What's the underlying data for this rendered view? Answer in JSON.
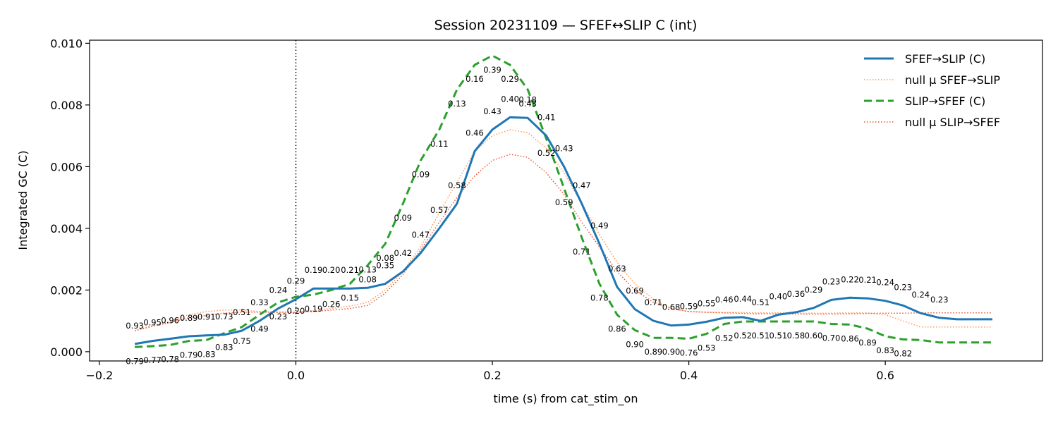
{
  "chart_data": {
    "type": "line",
    "title": "Session 20231109 — SFEF↔SLIP C (int)",
    "xlabel": "time (s) from cat_stim_on",
    "ylabel": "Integrated GC (C)",
    "xlim": [
      -0.21,
      0.76
    ],
    "ylim": [
      -0.0003,
      0.0101
    ],
    "x_ticks": [
      -0.2,
      0.0,
      0.2,
      0.4,
      0.6
    ],
    "x_tick_labels": [
      "−0.2",
      "0.0",
      "0.2",
      "0.4",
      "0.6"
    ],
    "y_ticks": [
      0.0,
      0.002,
      0.004,
      0.006,
      0.008,
      0.01
    ],
    "y_tick_labels": [
      "0.000",
      "0.002",
      "0.004",
      "0.006",
      "0.008",
      "0.010"
    ],
    "vline_x": 0.0,
    "legend_position": "top-right",
    "x": [
      -0.164,
      -0.146,
      -0.128,
      -0.109,
      -0.091,
      -0.073,
      -0.055,
      -0.037,
      -0.018,
      0.0,
      0.018,
      0.036,
      0.055,
      0.073,
      0.091,
      0.109,
      0.127,
      0.146,
      0.164,
      0.182,
      0.2,
      0.218,
      0.236,
      0.255,
      0.273,
      0.291,
      0.309,
      0.327,
      0.345,
      0.364,
      0.382,
      0.4,
      0.418,
      0.436,
      0.455,
      0.473,
      0.491,
      0.509,
      0.527,
      0.545,
      0.564,
      0.582,
      0.6,
      0.618,
      0.636,
      0.655,
      0.673,
      0.691,
      0.709
    ],
    "series": [
      {
        "name": "SFEF→SLIP (C)",
        "color": "#1f77b4",
        "style": "solid",
        "values": [
          0.00025,
          0.00035,
          0.00042,
          0.0005,
          0.00053,
          0.00055,
          0.00068,
          0.001,
          0.0014,
          0.0017,
          0.00205,
          0.00205,
          0.00205,
          0.00207,
          0.0022,
          0.0026,
          0.0032,
          0.004,
          0.0048,
          0.0065,
          0.0072,
          0.0076,
          0.00758,
          0.007,
          0.006,
          0.0048,
          0.0035,
          0.0021,
          0.00138,
          0.001,
          0.00085,
          0.00088,
          0.00097,
          0.0011,
          0.00112,
          0.001,
          0.0012,
          0.00128,
          0.00142,
          0.00168,
          0.00175,
          0.00173,
          0.00165,
          0.0015,
          0.00125,
          0.0011,
          0.00105,
          0.00105,
          0.00105
        ],
        "pvalues": [
          "0.93",
          "0.95",
          "0.96",
          "0.89",
          "0.91",
          "0.73",
          "0.51",
          "0.33",
          "0.24",
          "0.29",
          "0.19",
          "0.20",
          "0.21",
          "0.13",
          "0.35",
          "0.42",
          "0.47",
          "0.57",
          "0.58",
          "0.46",
          "0.43",
          "0.40",
          "0.18",
          "0.41",
          "0.43",
          "0.47",
          "0.49",
          "0.63",
          "0.69",
          "0.71",
          "0.68",
          "0.59",
          "0.55",
          "0.46",
          "0.44",
          "0.51",
          "0.40",
          "0.36",
          "0.29",
          "0.23",
          "0.22",
          "0.21",
          "0.24",
          "0.23",
          "0.24",
          "0.23",
          "",
          "",
          ""
        ]
      },
      {
        "name": "null μ SFEF→SLIP",
        "color": "#ff9955",
        "style": "dotted",
        "values": [
          0.00068,
          0.00085,
          0.001,
          0.0012,
          0.0013,
          0.00135,
          0.00135,
          0.0013,
          0.00128,
          0.00128,
          0.00133,
          0.0014,
          0.00148,
          0.0016,
          0.002,
          0.0026,
          0.0034,
          0.0045,
          0.0055,
          0.0065,
          0.007,
          0.0072,
          0.0071,
          0.0066,
          0.0058,
          0.0048,
          0.0038,
          0.0029,
          0.0022,
          0.0017,
          0.0014,
          0.0013,
          0.00128,
          0.00128,
          0.00127,
          0.00126,
          0.00126,
          0.00125,
          0.00125,
          0.00125,
          0.00126,
          0.00126,
          0.0012,
          0.001,
          0.0008,
          0.0008,
          0.0008,
          0.0008,
          0.0008
        ],
        "pvalues": []
      },
      {
        "name": "SLIP→SFEF (C)",
        "color": "#2ca02c",
        "style": "dashed",
        "values": [
          0.00015,
          0.00018,
          0.00022,
          0.00035,
          0.00038,
          0.0006,
          0.0008,
          0.0012,
          0.0016,
          0.00178,
          0.00185,
          0.002,
          0.0022,
          0.0028,
          0.0035,
          0.0048,
          0.0062,
          0.0072,
          0.0085,
          0.0093,
          0.0096,
          0.0093,
          0.0085,
          0.0069,
          0.0053,
          0.0037,
          0.0022,
          0.0012,
          0.0007,
          0.00045,
          0.00045,
          0.00042,
          0.00058,
          0.0009,
          0.00098,
          0.00098,
          0.00098,
          0.00098,
          0.00098,
          0.0009,
          0.00088,
          0.00075,
          0.0005,
          0.0004,
          0.00038,
          0.0003,
          0.0003,
          0.0003,
          0.0003
        ],
        "pvalues": [
          "0.79",
          "0.77",
          "0.78",
          "0.79",
          "0.83",
          "0.83",
          "0.75",
          "0.49",
          "0.23",
          "0.20",
          "0.19",
          "0.26",
          "0.15",
          "0.08",
          "0.08",
          "0.09",
          "0.09",
          "0.11",
          "0.13",
          "0.16",
          "0.39",
          "0.29",
          "0.43",
          "0.52",
          "0.59",
          "0.71",
          "0.78",
          "0.86",
          "0.90",
          "0.89",
          "0.90",
          "0.76",
          "0.53",
          "0.52",
          "0.52",
          "0.51",
          "0.51",
          "0.58",
          "0.60",
          "0.70",
          "0.86",
          "0.89",
          "0.83",
          "0.82",
          "",
          "",
          "",
          "",
          ""
        ]
      },
      {
        "name": "null μ SLIP→SFEF",
        "color": "#e8553a",
        "style": "dotted",
        "values": [
          0.00068,
          0.00082,
          0.00095,
          0.0011,
          0.00118,
          0.00125,
          0.00128,
          0.00128,
          0.00128,
          0.00128,
          0.0013,
          0.00135,
          0.0014,
          0.0015,
          0.0019,
          0.0025,
          0.0033,
          0.0042,
          0.005,
          0.0057,
          0.0062,
          0.0064,
          0.0063,
          0.0058,
          0.0051,
          0.0042,
          0.0034,
          0.0026,
          0.002,
          0.0016,
          0.0014,
          0.0013,
          0.00128,
          0.00126,
          0.00124,
          0.00123,
          0.00123,
          0.00122,
          0.00122,
          0.00122,
          0.00123,
          0.00124,
          0.00125,
          0.00125,
          0.00126,
          0.00126,
          0.00126,
          0.00126,
          0.00126
        ],
        "pvalues": []
      }
    ]
  }
}
